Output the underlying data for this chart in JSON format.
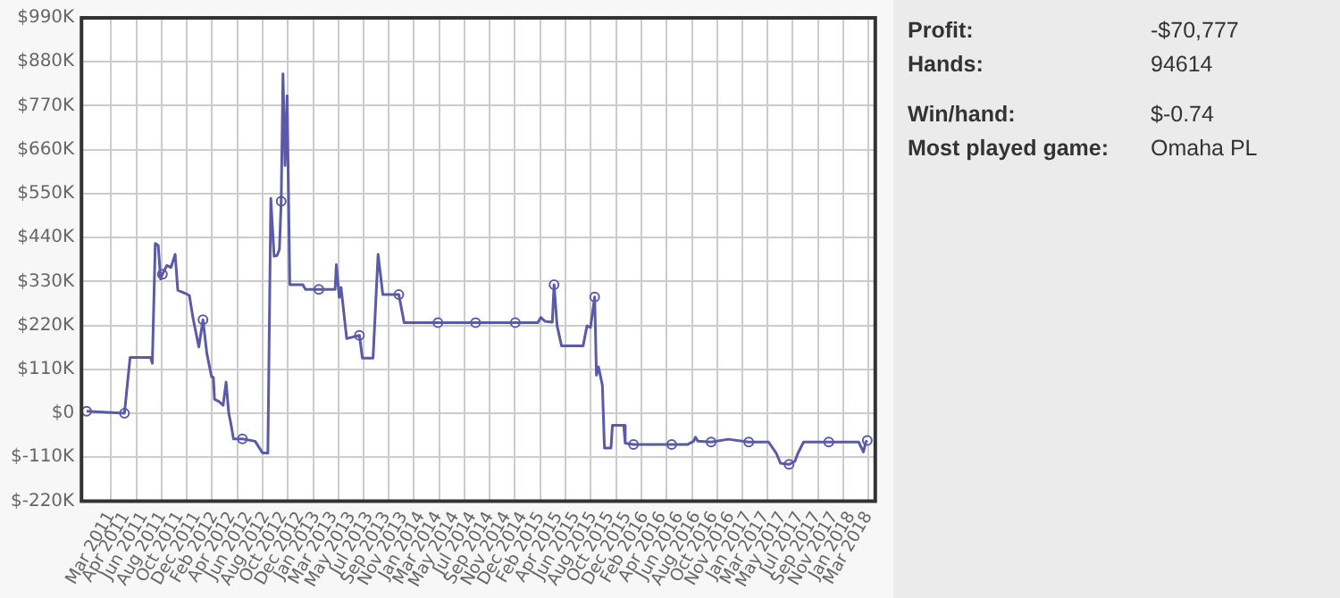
{
  "chart_data": [
    {
      "type": "line",
      "xlim": [
        "2010-12-01",
        "2018-04-02"
      ],
      "xticks": [
        {
          "value": "2011-03-11",
          "label": "Mar 2011"
        },
        {
          "value": "2011-04-30",
          "label": "Apr 2011"
        },
        {
          "value": "2011-06-30",
          "label": "Jun 2011"
        },
        {
          "value": "2011-08-31",
          "label": "Aug 2011"
        },
        {
          "value": "2011-10-29",
          "label": "Oct 2011"
        },
        {
          "value": "2011-12-26",
          "label": "Dec 2011"
        },
        {
          "value": "2012-02-23",
          "label": "Feb 2012"
        },
        {
          "value": "2012-04-21",
          "label": "Apr 2012"
        },
        {
          "value": "2012-06-18",
          "label": "Jun 2012"
        },
        {
          "value": "2012-08-15",
          "label": "Aug 2012"
        },
        {
          "value": "2012-10-12",
          "label": "Oct 2012"
        },
        {
          "value": "2012-12-09",
          "label": "Dec 2012"
        },
        {
          "value": "2013-01-31",
          "label": "Jan 2013"
        },
        {
          "value": "2013-03-31",
          "label": "Mar 2013"
        },
        {
          "value": "2013-05-31",
          "label": "May 2013"
        },
        {
          "value": "2013-07-30",
          "label": "Jul 2013"
        },
        {
          "value": "2013-09-26",
          "label": "Sep 2013"
        },
        {
          "value": "2013-11-23",
          "label": "Nov 2013"
        },
        {
          "value": "2014-01-20",
          "label": "Jan 2014"
        },
        {
          "value": "2014-03-19",
          "label": "Mar 2014"
        },
        {
          "value": "2014-05-16",
          "label": "May 2014"
        },
        {
          "value": "2014-07-13",
          "label": "Jul 2014"
        },
        {
          "value": "2014-09-09",
          "label": "Sep 2014"
        },
        {
          "value": "2014-11-06",
          "label": "Nov 2014"
        },
        {
          "value": "2014-12-31",
          "label": "Dec 2014"
        },
        {
          "value": "2015-02-28",
          "label": "Feb 2015"
        },
        {
          "value": "2015-04-30",
          "label": "Apr 2015"
        },
        {
          "value": "2015-06-27",
          "label": "Jun 2015"
        },
        {
          "value": "2015-08-24",
          "label": "Aug 2015"
        },
        {
          "value": "2015-10-21",
          "label": "Oct 2015"
        },
        {
          "value": "2015-12-18",
          "label": "Dec 2015"
        },
        {
          "value": "2016-02-14",
          "label": "Feb 2016"
        },
        {
          "value": "2016-04-14",
          "label": "Apr 2016"
        },
        {
          "value": "2016-06-11",
          "label": "Jun 2016"
        },
        {
          "value": "2016-08-08",
          "label": "Aug 2016"
        },
        {
          "value": "2016-10-05",
          "label": "Oct 2016"
        },
        {
          "value": "2016-11-30",
          "label": "Nov 2016"
        },
        {
          "value": "2017-01-29",
          "label": "Jan 2017"
        },
        {
          "value": "2017-03-27",
          "label": "Mar 2017"
        },
        {
          "value": "2017-05-24",
          "label": "May 2017"
        },
        {
          "value": "2017-07-21",
          "label": "Jul 2017"
        },
        {
          "value": "2017-09-17",
          "label": "Sep 2017"
        },
        {
          "value": "2017-11-14",
          "label": "Nov 2017"
        },
        {
          "value": "2018-01-11",
          "label": "Jan 2018"
        },
        {
          "value": "2018-03-10",
          "label": "Mar 2018"
        },
        {
          "value": "2011-03-11",
          "label": null
        },
        {
          "value": "2011-06-04",
          "label": null
        },
        {
          "value": "2011-08-28",
          "label": null
        },
        {
          "value": "2011-11-22",
          "label": null
        },
        {
          "value": "2012-02-15",
          "label": null
        },
        {
          "value": "2012-05-10",
          "label": null
        },
        {
          "value": "2012-08-03",
          "label": null
        },
        {
          "value": "2012-10-27",
          "label": null
        },
        {
          "value": "2013-01-21",
          "label": null
        },
        {
          "value": "2013-04-16",
          "label": null
        },
        {
          "value": "2013-07-10",
          "label": null
        },
        {
          "value": "2013-10-03",
          "label": null
        },
        {
          "value": "2013-12-27",
          "label": null
        },
        {
          "value": "2014-03-23",
          "label": null
        },
        {
          "value": "2014-06-16",
          "label": null
        },
        {
          "value": "2014-09-09",
          "label": null
        },
        {
          "value": "2014-12-03",
          "label": null
        },
        {
          "value": "2015-02-26",
          "label": null
        },
        {
          "value": "2015-05-23",
          "label": null
        },
        {
          "value": "2015-08-16",
          "label": null
        },
        {
          "value": "2015-11-09",
          "label": null
        },
        {
          "value": "2016-02-02",
          "label": null
        },
        {
          "value": "2016-04-28",
          "label": null
        },
        {
          "value": "2016-07-23",
          "label": null
        },
        {
          "value": "2016-10-16",
          "label": null
        },
        {
          "value": "2017-01-09",
          "label": null
        },
        {
          "value": "2017-04-03",
          "label": null
        },
        {
          "value": "2017-06-27",
          "label": null
        },
        {
          "value": "2017-09-21",
          "label": null
        },
        {
          "value": "2017-12-15",
          "label": null
        },
        {
          "value": "2018-03-10",
          "label": null
        }
      ],
      "ylim": [
        -220,
        990
      ],
      "yticks": [
        {
          "value": -220,
          "label": "$-220K"
        },
        {
          "value": -110,
          "label": "$-110K"
        },
        {
          "value": 0,
          "label": "$0"
        },
        {
          "value": 110,
          "label": "$110K"
        },
        {
          "value": 220,
          "label": "$220K"
        },
        {
          "value": 330,
          "label": "$330K"
        },
        {
          "value": 440,
          "label": "$440K"
        },
        {
          "value": 550,
          "label": "$550K"
        },
        {
          "value": 660,
          "label": "$660K"
        },
        {
          "value": 770,
          "label": "$770K"
        },
        {
          "value": 880,
          "label": "$880K"
        },
        {
          "value": 990,
          "label": "$990K"
        }
      ],
      "grid": true,
      "series": [
        {
          "type": "line",
          "color": "#5a5aa8",
          "marker": "none",
          "x": [
            "2010-12-18",
            "2011-04-25",
            "2011-05-14",
            "2011-07-22",
            "2011-07-28",
            "2011-08-07",
            "2011-08-17",
            "2011-08-25",
            "2011-08-31",
            "2011-09-15",
            "2011-09-29",
            "2011-10-13",
            "2011-10-22",
            "2011-11-17",
            "2011-11-30",
            "2011-12-12",
            "2011-12-20",
            "2012-01-01",
            "2012-01-15",
            "2012-01-28",
            "2012-02-13",
            "2012-02-19",
            "2012-02-23",
            "2012-03-08",
            "2012-03-23",
            "2012-04-02",
            "2012-04-11",
            "2012-04-18",
            "2012-04-27",
            "2012-05-27",
            "2012-07-09",
            "2012-08-03",
            "2012-08-21",
            "2012-08-31",
            "2012-09-11",
            "2012-09-21",
            "2012-09-29",
            "2012-10-05",
            "2012-10-11",
            "2012-10-18",
            "2012-10-25",
            "2012-11-03",
            "2012-12-17",
            "2012-12-26",
            "2013-02-09",
            "2013-04-05",
            "2013-04-09",
            "2013-04-19",
            "2013-04-25",
            "2013-05-14",
            "2013-06-26",
            "2013-07-06",
            "2013-08-11",
            "2013-08-28",
            "2013-09-13",
            "2013-11-06",
            "2013-11-24",
            "2014-03-18",
            "2014-07-23",
            "2014-12-04",
            "2015-02-18",
            "2015-02-28",
            "2015-03-15",
            "2015-04-08",
            "2015-04-14",
            "2015-04-24",
            "2015-05-09",
            "2015-07-21",
            "2015-08-03",
            "2015-08-15",
            "2015-08-29",
            "2015-09-04",
            "2015-09-11",
            "2015-09-24",
            "2015-10-01",
            "2015-10-23",
            "2015-10-28",
            "2015-12-05",
            "2015-12-10",
            "2016-01-07",
            "2016-05-15",
            "2016-07-08",
            "2016-07-28",
            "2016-08-03",
            "2016-08-11",
            "2016-09-25",
            "2016-11-22",
            "2017-01-30",
            "2017-04-07",
            "2017-05-03",
            "2017-05-17",
            "2017-06-15",
            "2017-07-05",
            "2017-07-15",
            "2017-08-03",
            "2017-10-27",
            "2018-02-05",
            "2018-02-21",
            "2018-03-01",
            "2018-03-06"
          ],
          "values": [
            5,
            0,
            140,
            140,
            125,
            425,
            420,
            336,
            348,
            370,
            365,
            398,
            308,
            300,
            295,
            240,
            210,
            166,
            234,
            150,
            91,
            90,
            35,
            30,
            20,
            78,
            0,
            -25,
            -64,
            -64,
            -70,
            -99,
            -100,
            538,
            393,
            395,
            410,
            531,
            850,
            620,
            795,
            322,
            322,
            310,
            310,
            310,
            372,
            290,
            315,
            187,
            195,
            138,
            138,
            398,
            297,
            297,
            227,
            227,
            227,
            227,
            227,
            240,
            230,
            228,
            322,
            220,
            169,
            169,
            219,
            215,
            291,
            95,
            116,
            70,
            -87,
            -87,
            -30,
            -30,
            -75,
            -78,
            -78,
            -78,
            -70,
            -60,
            -70,
            -72,
            -65,
            -72,
            -72,
            -100,
            -125,
            -128,
            -120,
            -100,
            -72,
            -72,
            -72,
            -97,
            -72,
            -68
          ]
        },
        {
          "type": "scatter",
          "color": "#5a5aa8",
          "marker": "circle",
          "x": [
            "2010-12-18",
            "2011-04-25",
            "2011-08-31",
            "2012-01-15",
            "2012-05-27",
            "2012-10-05",
            "2013-02-09",
            "2013-06-26",
            "2013-11-06",
            "2014-03-18",
            "2014-07-23",
            "2014-12-04",
            "2015-04-14",
            "2015-08-29",
            "2016-01-07",
            "2016-05-15",
            "2016-09-25",
            "2017-01-30",
            "2017-06-15",
            "2017-10-27",
            "2018-03-06"
          ],
          "values": [
            5,
            0,
            348,
            234,
            -64,
            531,
            310,
            195,
            297,
            227,
            227,
            227,
            322,
            291,
            -78,
            -78,
            -72,
            -72,
            -128,
            -72,
            -68
          ]
        }
      ]
    },
    {
      "type": "other",
      "annotations": [
        "Profit:",
        "-$70,777",
        "Hands:",
        "94614",
        "Win/hand:",
        "$-0.74",
        "Most played game:",
        "Omaha PL"
      ]
    }
  ]
}
